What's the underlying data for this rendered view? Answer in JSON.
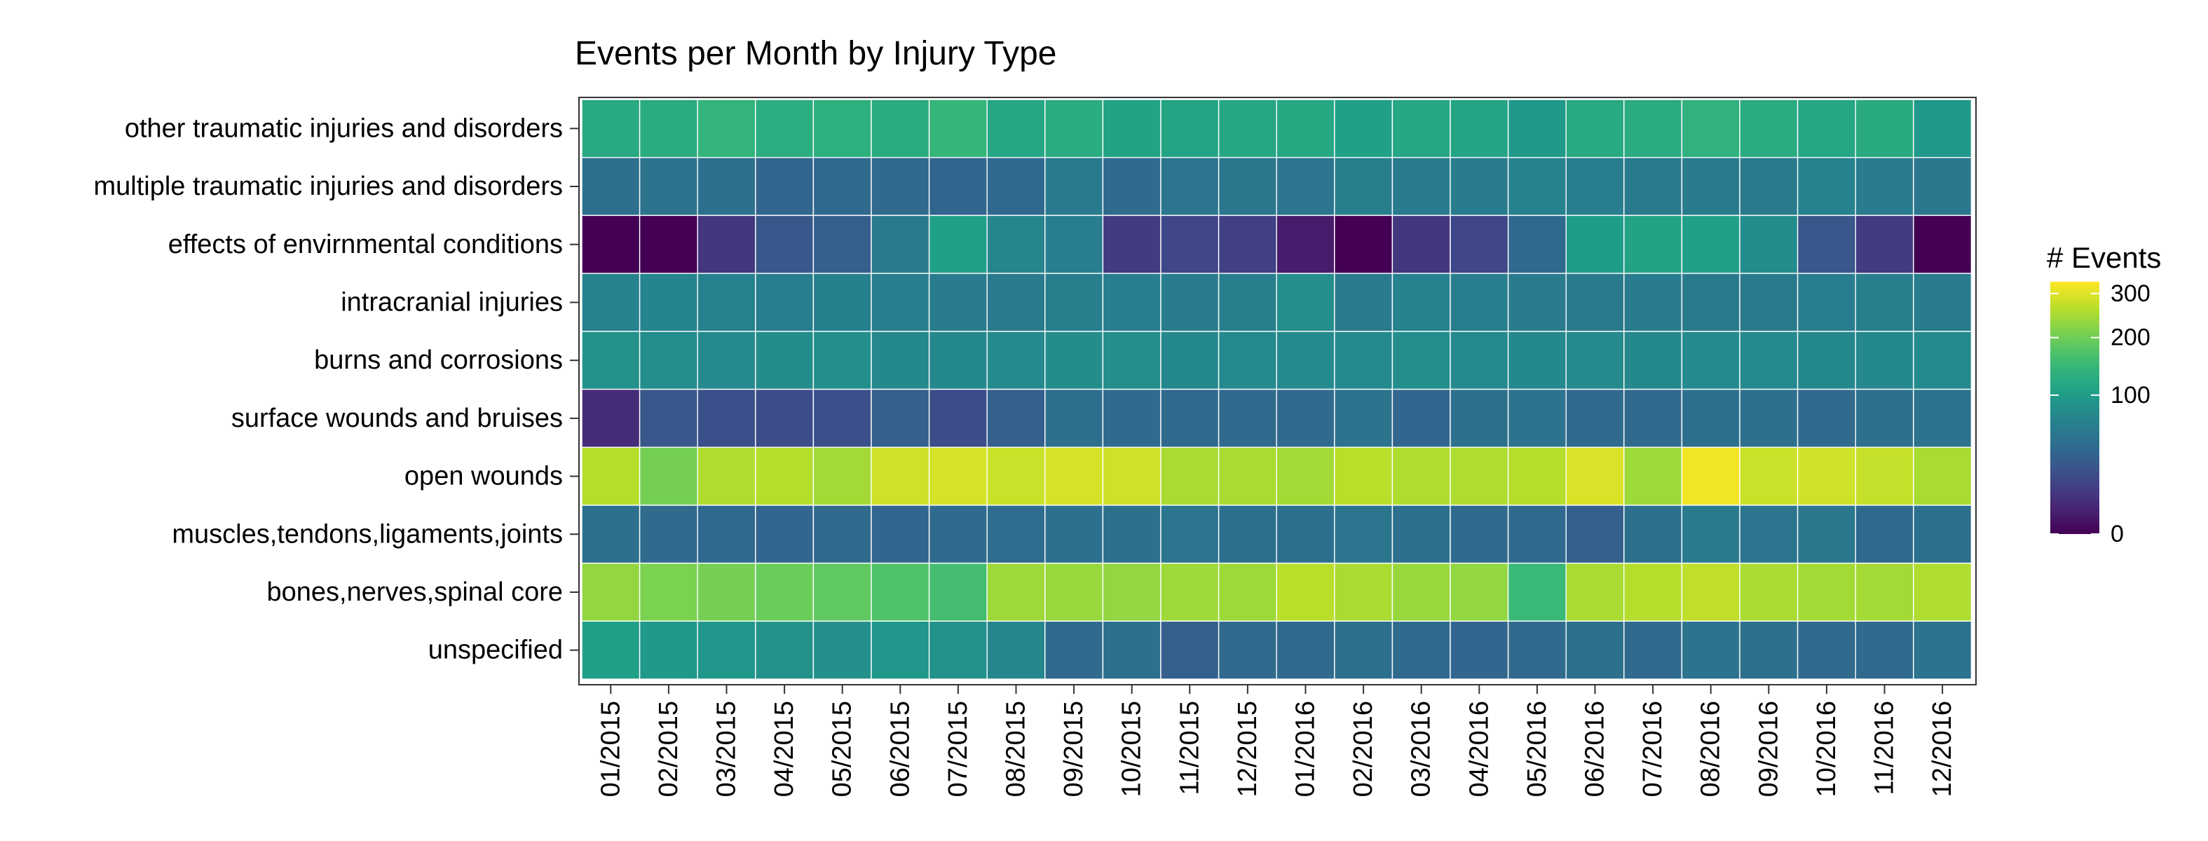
{
  "chart_data": {
    "type": "heatmap",
    "title": "Events per Month by Injury Type",
    "xlabel": "",
    "ylabel": "",
    "x_categories": [
      "01/2015",
      "02/2015",
      "03/2015",
      "04/2015",
      "05/2015",
      "06/2015",
      "07/2015",
      "08/2015",
      "09/2015",
      "10/2015",
      "11/2015",
      "12/2015",
      "01/2016",
      "02/2016",
      "03/2016",
      "04/2016",
      "05/2016",
      "06/2016",
      "07/2016",
      "08/2016",
      "09/2016",
      "10/2016",
      "11/2016",
      "12/2016"
    ],
    "y_categories": [
      "other traumatic injuries and disorders",
      "multiple traumatic injuries and disorders",
      "effects of envirnmental conditions",
      "intracranial injuries",
      "burns and corrosions",
      "surface wounds and bruises",
      "open wounds",
      "muscles,tendons,ligaments,joints",
      "bones,nerves,spinal core",
      "unspecified"
    ],
    "values": [
      [
        120,
        125,
        140,
        128,
        132,
        125,
        145,
        115,
        125,
        110,
        112,
        115,
        118,
        105,
        115,
        112,
        95,
        120,
        125,
        135,
        125,
        115,
        122,
        95
      ],
      [
        45,
        48,
        45,
        35,
        38,
        40,
        34,
        38,
        55,
        40,
        50,
        52,
        50,
        62,
        58,
        58,
        65,
        60,
        55,
        58,
        55,
        65,
        58,
        52
      ],
      [
        0,
        0,
        8,
        25,
        30,
        55,
        105,
        70,
        60,
        10,
        15,
        12,
        2,
        0,
        8,
        15,
        38,
        100,
        110,
        105,
        78,
        25,
        10,
        0
      ],
      [
        65,
        68,
        65,
        60,
        63,
        60,
        58,
        55,
        62,
        60,
        58,
        62,
        80,
        55,
        65,
        60,
        55,
        55,
        58,
        55,
        55,
        60,
        62,
        58
      ],
      [
        85,
        80,
        75,
        78,
        80,
        72,
        72,
        75,
        78,
        80,
        72,
        75,
        75,
        75,
        80,
        75,
        72,
        75,
        72,
        75,
        75,
        72,
        72,
        75
      ],
      [
        5,
        25,
        20,
        18,
        20,
        30,
        18,
        30,
        45,
        40,
        38,
        40,
        40,
        48,
        35,
        45,
        48,
        40,
        40,
        45,
        45,
        40,
        45,
        48
      ],
      [
        260,
        205,
        255,
        260,
        245,
        285,
        290,
        280,
        290,
        285,
        250,
        250,
        245,
        265,
        255,
        255,
        260,
        295,
        240,
        320,
        280,
        285,
        275,
        250
      ],
      [
        45,
        40,
        38,
        35,
        40,
        35,
        40,
        42,
        45,
        45,
        50,
        45,
        45,
        50,
        45,
        40,
        38,
        30,
        45,
        55,
        50,
        52,
        38,
        45
      ],
      [
        230,
        210,
        205,
        195,
        185,
        170,
        160,
        240,
        235,
        230,
        240,
        240,
        265,
        250,
        235,
        230,
        150,
        250,
        260,
        270,
        250,
        245,
        245,
        255
      ],
      [
        105,
        95,
        90,
        85,
        82,
        90,
        85,
        70,
        40,
        45,
        30,
        40,
        40,
        45,
        40,
        35,
        40,
        45,
        40,
        48,
        45,
        40,
        40,
        48
      ]
    ],
    "legend": {
      "title": "# Events",
      "position": "right",
      "ticks": [
        0,
        100,
        200,
        300
      ],
      "range": [
        0,
        330
      ],
      "scale": "sqrt"
    },
    "colormap": "viridis",
    "grid": true
  }
}
